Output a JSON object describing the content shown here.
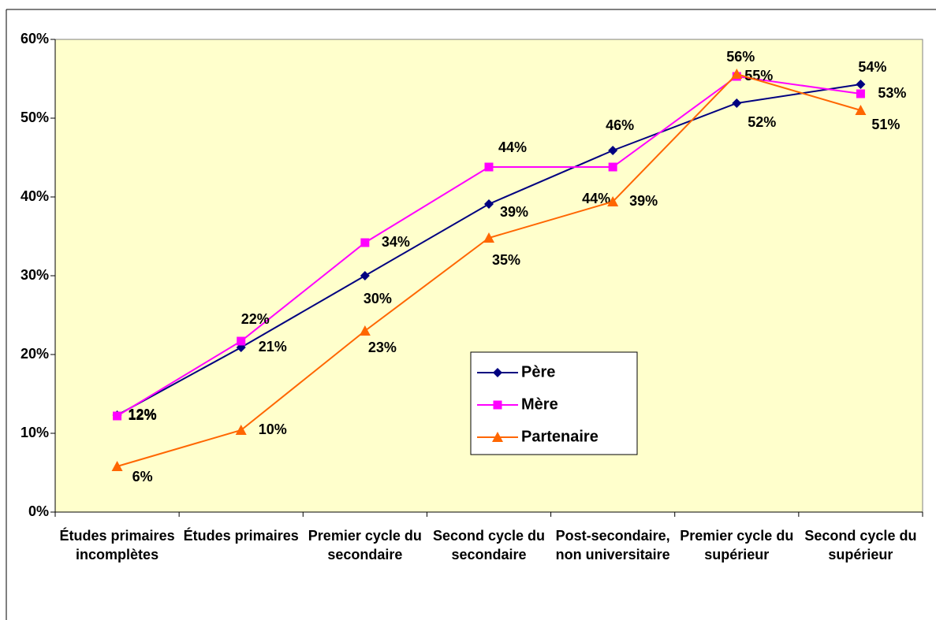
{
  "chart_data": {
    "type": "line",
    "categories": [
      "Études primaires incomplètes",
      "Études primaires",
      "Premier cycle du secondaire",
      "Second cycle du secondaire",
      "Post-secondaire, non universitaire",
      "Premier cycle du supérieur",
      "Second cycle du supérieur"
    ],
    "series": [
      {
        "name": "Père",
        "color": "#000080",
        "marker": "diamond",
        "values": [
          12.3,
          20.9,
          30,
          39.1,
          45.9,
          51.9,
          54.3
        ],
        "value_labels": [
          "12%",
          "21%",
          "30%",
          "39%",
          "46%",
          "52%",
          "54%"
        ]
      },
      {
        "name": "Mère",
        "color": "#ff00ff",
        "marker": "square",
        "values": [
          12.2,
          21.7,
          34.2,
          43.8,
          43.8,
          55.3,
          53.1
        ],
        "value_labels": [
          "12%",
          "22%",
          "34%",
          "44%",
          "44%",
          "55%",
          "53%"
        ]
      },
      {
        "name": "Partenaire",
        "color": "#ff6600",
        "marker": "triangle",
        "values": [
          5.8,
          10.4,
          23,
          34.8,
          39.4,
          55.6,
          51
        ],
        "value_labels": [
          "6%",
          "10%",
          "23%",
          "35%",
          "39%",
          "56%",
          "51%"
        ]
      }
    ],
    "ylim": [
      0,
      60
    ],
    "yticks": [
      {
        "value": 0,
        "label": "0%"
      },
      {
        "value": 10,
        "label": "10%"
      },
      {
        "value": 20,
        "label": "20%"
      },
      {
        "value": 30,
        "label": "30%"
      },
      {
        "value": 40,
        "label": "40%"
      },
      {
        "value": 50,
        "label": "50%"
      },
      {
        "value": 60,
        "label": "60%"
      }
    ],
    "background": "#ffffcc"
  }
}
